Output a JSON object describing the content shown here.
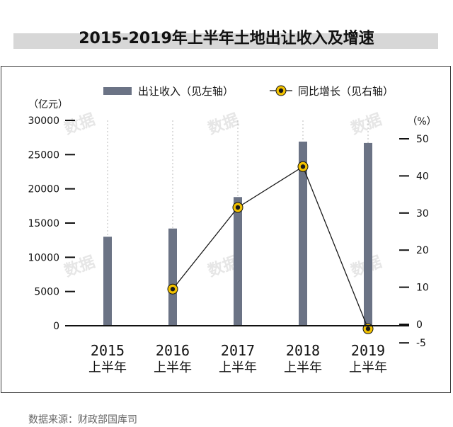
{
  "title": "2015-2019年上半年土地出让收入及增速",
  "source": "数据来源：财政部国库司",
  "watermark": "数据",
  "colors": {
    "bar": "#6b7385",
    "line": "#1a1a1a",
    "marker_ring": "#f2c200",
    "marker_fill": "#1a1a1a",
    "title_bar": "#d7d7d7"
  },
  "chart_data": {
    "type": "bar+line",
    "categories": [
      {
        "year": "2015",
        "half": "上半年"
      },
      {
        "year": "2016",
        "half": "上半年"
      },
      {
        "year": "2017",
        "half": "上半年"
      },
      {
        "year": "2018",
        "half": "上半年"
      },
      {
        "year": "2019",
        "half": "上半年"
      }
    ],
    "left_unit": "（亿元）",
    "right_unit": "（%）",
    "left_ticks": [
      "30000",
      "25000",
      "20000",
      "15000",
      "10000",
      "5000",
      "0"
    ],
    "right_ticks": [
      "50",
      "40",
      "30",
      "20",
      "10",
      "0",
      "-5"
    ],
    "left_ylim": [
      0,
      30000
    ],
    "right_ylim": [
      -5,
      50
    ],
    "series": [
      {
        "name": "出让收入（见左轴）",
        "type": "bar",
        "axis": "left",
        "values": [
          13000,
          14200,
          18800,
          26900,
          26700
        ]
      },
      {
        "name": "同比增长（见右轴）",
        "type": "line",
        "axis": "right",
        "values": [
          null,
          9.5,
          31.5,
          42.5,
          -1.2
        ]
      }
    ],
    "legend_position": "top"
  }
}
